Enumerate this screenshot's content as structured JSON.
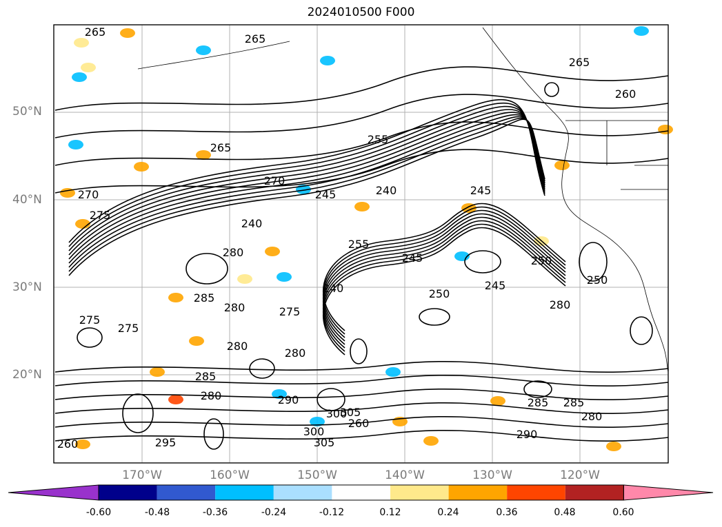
{
  "title": "2024010500 F000",
  "lat_ticks": [
    "50°N",
    "40°N",
    "30°N",
    "20°N"
  ],
  "lon_ticks": [
    "170°W",
    "160°W",
    "150°W",
    "140°W",
    "130°W",
    "120°W"
  ],
  "contour_labels": [
    "265",
    "265",
    "260",
    "255",
    "265",
    "265",
    "270",
    "270",
    "275",
    "280",
    "285",
    "275",
    "275",
    "245",
    "240",
    "240",
    "240",
    "245",
    "250",
    "245",
    "245",
    "250",
    "250",
    "255",
    "280",
    "280",
    "280",
    "285",
    "280",
    "285",
    "290",
    "295",
    "300",
    "305",
    "300",
    "305",
    "290",
    "285",
    "280",
    "280",
    "275",
    "260",
    "260"
  ],
  "colorbar": {
    "ticks": [
      "-0.60",
      "-0.48",
      "-0.36",
      "-0.24",
      "-0.12",
      "0.12",
      "0.24",
      "0.36",
      "0.48",
      "0.60"
    ],
    "colors": [
      "#9932cc",
      "#00008b",
      "#3159cf",
      "#00bfff",
      "#aadfff",
      "#ffffff",
      "#ffe98b",
      "#ffa500",
      "#ff4500",
      "#b22222",
      "#ff88aa"
    ]
  }
}
